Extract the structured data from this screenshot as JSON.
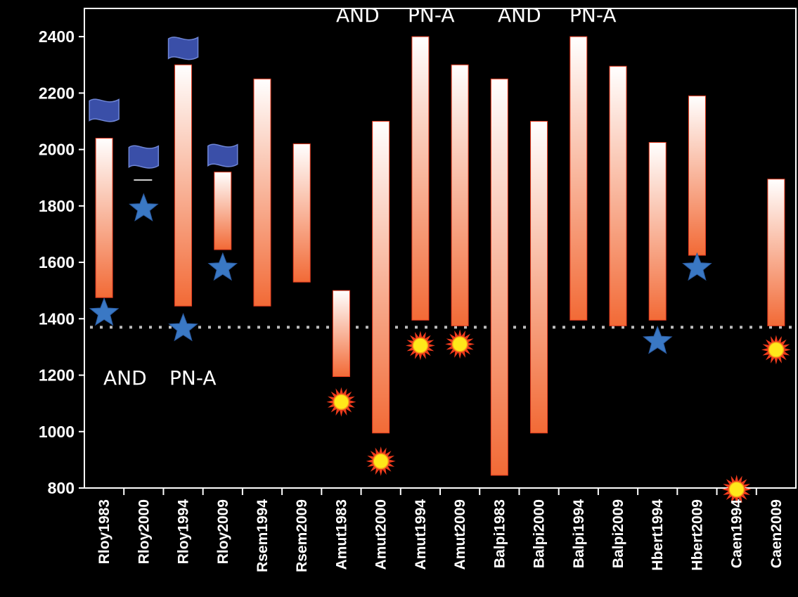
{
  "chart_data": {
    "type": "bar",
    "subtype": "floating-range",
    "categories": [
      "Rloy1983",
      "Rloy2000",
      "Rloy1994",
      "Rloy2009",
      "Rsem1994",
      "Rsem2009",
      "Amut1983",
      "Amut2000",
      "Amut1994",
      "Amut2009",
      "Balpi1983",
      "Balpi2000",
      "Balpi1994",
      "Balpi2009",
      "Hbert1994",
      "Hbert2009",
      "Caen1994",
      "Caen2009"
    ],
    "ranges": [
      [
        1475,
        2040
      ],
      null,
      [
        1445,
        2300
      ],
      [
        1645,
        1920
      ],
      [
        1445,
        2250
      ],
      [
        1530,
        2020
      ],
      [
        1195,
        1500
      ],
      [
        995,
        2100
      ],
      [
        1395,
        2400
      ],
      [
        1375,
        2300
      ],
      [
        845,
        2250
      ],
      [
        995,
        2100
      ],
      [
        1395,
        2400
      ],
      [
        1375,
        2295
      ],
      [
        1395,
        2025
      ],
      [
        1625,
        2190
      ],
      null,
      [
        1375,
        1895
      ]
    ],
    "markers": {
      "star": [
        [
          0,
          1420
        ],
        [
          1,
          1790
        ],
        [
          2,
          1365
        ],
        [
          3,
          1580
        ],
        [
          14,
          1320
        ],
        [
          15,
          1580
        ]
      ],
      "sun": [
        [
          6,
          1105
        ],
        [
          7,
          895
        ],
        [
          8,
          1305
        ],
        [
          9,
          1310
        ],
        [
          16,
          795
        ],
        [
          17,
          1290
        ]
      ],
      "flag": [
        [
          0,
          2140
        ],
        [
          1,
          1975
        ],
        [
          2,
          2360
        ],
        [
          3,
          1980
        ]
      ]
    },
    "reference_line": 1370,
    "ylim": [
      800,
      2500
    ],
    "yticks": [
      800,
      1000,
      1200,
      1400,
      1600,
      1800,
      2000,
      2200,
      2400
    ],
    "annotations": [
      {
        "text": "AND",
        "near": "Amut1983"
      },
      {
        "text": "PN-A",
        "near": "Amut1994"
      },
      {
        "text": "AND",
        "near": "Amut2009"
      },
      {
        "text": "PN-A",
        "near": "Balpi1994"
      },
      {
        "text": "AND",
        "near": "Rloy1983"
      },
      {
        "text": "PN-A",
        "near": "Rloy1994"
      }
    ],
    "colors": {
      "bar_top": "#ffffff",
      "bar_bottom": "#f26a36",
      "bar_edge": "#e63a1e",
      "star": "#3a78c4",
      "flag": "#3a4fa8",
      "sun_fill": "#ffe81a",
      "sun_rays": "#ee3b1c",
      "reference_line": "#bdbdbd",
      "axis": "#ffffff"
    }
  }
}
